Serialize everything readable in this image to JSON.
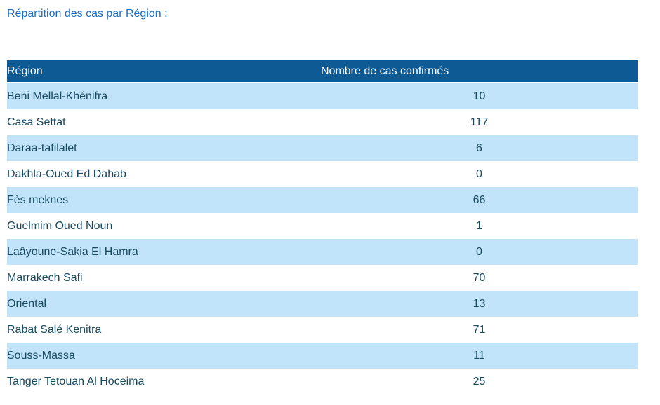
{
  "page": {
    "title": "Répartition des cas par Région :"
  },
  "colors": {
    "title_text": "#1B6EC2",
    "header_bg": "#0E5A94",
    "header_text": "#FFFFFF",
    "row_alt_bg": "#C1E4FB",
    "row_text": "#17495F"
  },
  "table": {
    "columns": [
      {
        "label": "Région"
      },
      {
        "label": "Nombre de cas confirmés"
      }
    ],
    "rows": [
      {
        "region": "Beni Mellal-Khénifra",
        "cases": "10"
      },
      {
        "region": "Casa Settat",
        "cases": "117"
      },
      {
        "region": "Daraa-tafilalet",
        "cases": "6"
      },
      {
        "region": "Dakhla-Oued Ed Dahab",
        "cases": "0"
      },
      {
        "region": "Fès meknes",
        "cases": "66"
      },
      {
        "region": "Guelmim Oued Noun",
        "cases": "1"
      },
      {
        "region": "Laâyoune-Sakia El Hamra",
        "cases": "0"
      },
      {
        "region": "Marrakech Safi",
        "cases": "70"
      },
      {
        "region": "Oriental",
        "cases": "13"
      },
      {
        "region": "Rabat Salé Kenitra",
        "cases": "71"
      },
      {
        "region": "Souss-Massa",
        "cases": "11"
      },
      {
        "region": "Tanger Tetouan Al Hoceima",
        "cases": "25"
      }
    ]
  }
}
